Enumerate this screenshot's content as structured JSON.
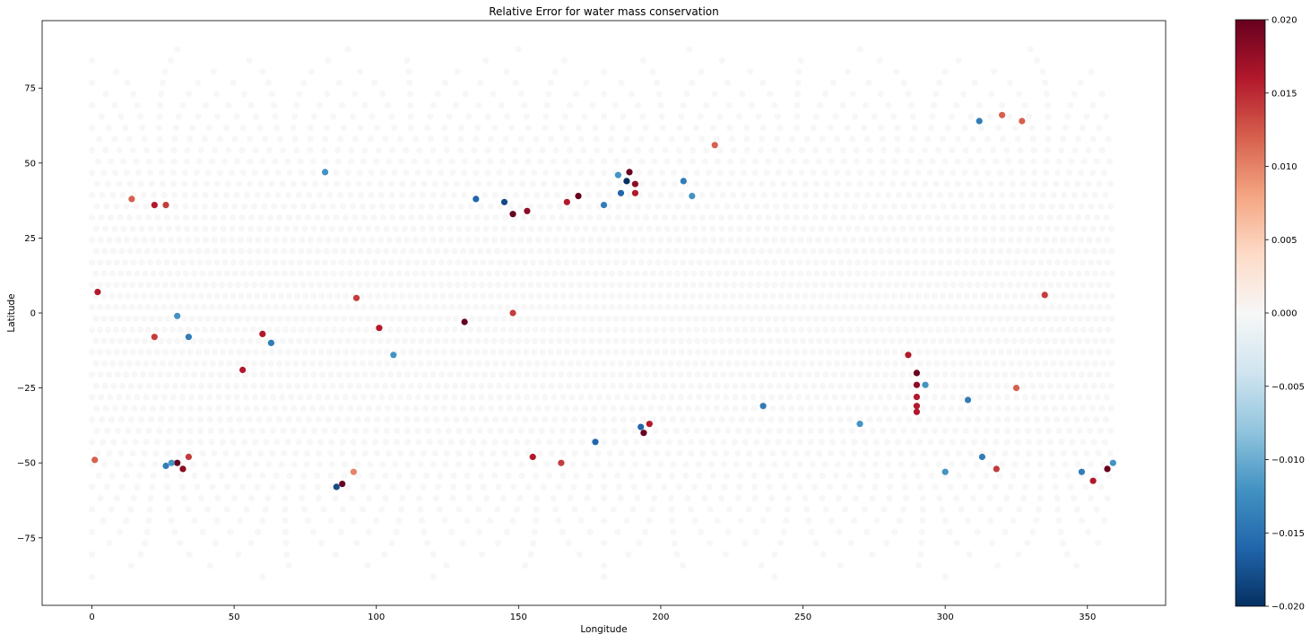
{
  "chart_data": {
    "type": "scatter",
    "title": "Relative Error for water mass conservation",
    "xlabel": "Longitude",
    "ylabel": "Latitude",
    "xlim": [
      -17.5,
      377.5
    ],
    "ylim": [
      -97.5,
      97.5
    ],
    "x_ticks": [
      0,
      50,
      100,
      150,
      200,
      250,
      300,
      350
    ],
    "y_ticks": [
      -75,
      -50,
      -25,
      0,
      25,
      50,
      75
    ],
    "x_tick_labels": [
      "0",
      "50",
      "100",
      "150",
      "200",
      "250",
      "300",
      "350"
    ],
    "y_tick_labels": [
      "−75",
      "−50",
      "−25",
      "0",
      "25",
      "50",
      "75"
    ],
    "grid": false,
    "colormap": "RdBu_r",
    "colorbar": {
      "range": [
        -0.02,
        0.02
      ],
      "ticks": [
        -0.02,
        -0.015,
        -0.01,
        -0.005,
        0.0,
        0.005,
        0.01,
        0.015,
        0.02
      ],
      "tick_labels": [
        "−0.020",
        "−0.015",
        "−0.010",
        "−0.005",
        "0.000",
        "0.005",
        "0.010",
        "0.015",
        "0.020"
      ]
    },
    "background_points_value": 0.0,
    "notable_points": [
      {
        "x": 2,
        "y": 7,
        "value": 0.016
      },
      {
        "x": 1,
        "y": -49,
        "value": 0.012
      },
      {
        "x": 22,
        "y": 36,
        "value": 0.016
      },
      {
        "x": 26,
        "y": 36,
        "value": 0.014
      },
      {
        "x": 14,
        "y": 38,
        "value": 0.012
      },
      {
        "x": 30,
        "y": -1,
        "value": -0.012
      },
      {
        "x": 22,
        "y": -8,
        "value": 0.014
      },
      {
        "x": 34,
        "y": -8,
        "value": -0.014
      },
      {
        "x": 30,
        "y": -50,
        "value": 0.02
      },
      {
        "x": 32,
        "y": -52,
        "value": 0.018
      },
      {
        "x": 28,
        "y": -50,
        "value": -0.012
      },
      {
        "x": 34,
        "y": -48,
        "value": 0.014
      },
      {
        "x": 26,
        "y": -51,
        "value": -0.014
      },
      {
        "x": 60,
        "y": -7,
        "value": 0.016
      },
      {
        "x": 63,
        "y": -10,
        "value": -0.014
      },
      {
        "x": 53,
        "y": -19,
        "value": 0.016
      },
      {
        "x": 88,
        "y": -57,
        "value": 0.02
      },
      {
        "x": 86,
        "y": -58,
        "value": -0.018
      },
      {
        "x": 92,
        "y": -53,
        "value": 0.01
      },
      {
        "x": 82,
        "y": 47,
        "value": -0.012
      },
      {
        "x": 93,
        "y": 5,
        "value": 0.014
      },
      {
        "x": 106,
        "y": -14,
        "value": -0.012
      },
      {
        "x": 101,
        "y": -5,
        "value": 0.016
      },
      {
        "x": 131,
        "y": -3,
        "value": 0.02
      },
      {
        "x": 148,
        "y": 33,
        "value": 0.02
      },
      {
        "x": 153,
        "y": 34,
        "value": 0.018
      },
      {
        "x": 171,
        "y": 39,
        "value": 0.02
      },
      {
        "x": 167,
        "y": 37,
        "value": 0.016
      },
      {
        "x": 145,
        "y": 37,
        "value": -0.018
      },
      {
        "x": 135,
        "y": 38,
        "value": -0.016
      },
      {
        "x": 189,
        "y": 47,
        "value": 0.02
      },
      {
        "x": 188,
        "y": 44,
        "value": -0.02
      },
      {
        "x": 191,
        "y": 43,
        "value": 0.018
      },
      {
        "x": 186,
        "y": 40,
        "value": -0.016
      },
      {
        "x": 191,
        "y": 40,
        "value": 0.016
      },
      {
        "x": 185,
        "y": 46,
        "value": -0.012
      },
      {
        "x": 180,
        "y": 36,
        "value": -0.014
      },
      {
        "x": 148,
        "y": 0,
        "value": 0.014
      },
      {
        "x": 155,
        "y": -48,
        "value": 0.016
      },
      {
        "x": 177,
        "y": -43,
        "value": -0.016
      },
      {
        "x": 194,
        "y": -40,
        "value": 0.02
      },
      {
        "x": 196,
        "y": -37,
        "value": 0.016
      },
      {
        "x": 193,
        "y": -38,
        "value": -0.016
      },
      {
        "x": 165,
        "y": -50,
        "value": 0.014
      },
      {
        "x": 208,
        "y": 44,
        "value": -0.014
      },
      {
        "x": 211,
        "y": 39,
        "value": -0.012
      },
      {
        "x": 219,
        "y": 56,
        "value": 0.012
      },
      {
        "x": 236,
        "y": -31,
        "value": -0.014
      },
      {
        "x": 290,
        "y": -20,
        "value": 0.02
      },
      {
        "x": 290,
        "y": -24,
        "value": 0.018
      },
      {
        "x": 290,
        "y": -28,
        "value": 0.016
      },
      {
        "x": 290,
        "y": -31,
        "value": 0.016
      },
      {
        "x": 290,
        "y": -33,
        "value": 0.016
      },
      {
        "x": 287,
        "y": -14,
        "value": 0.016
      },
      {
        "x": 293,
        "y": -24,
        "value": -0.012
      },
      {
        "x": 308,
        "y": -29,
        "value": -0.014
      },
      {
        "x": 300,
        "y": -53,
        "value": -0.012
      },
      {
        "x": 313,
        "y": -48,
        "value": -0.014
      },
      {
        "x": 318,
        "y": -52,
        "value": 0.014
      },
      {
        "x": 320,
        "y": 66,
        "value": 0.012
      },
      {
        "x": 312,
        "y": 64,
        "value": -0.014
      },
      {
        "x": 327,
        "y": 64,
        "value": 0.012
      },
      {
        "x": 348,
        "y": -53,
        "value": -0.014
      },
      {
        "x": 352,
        "y": -56,
        "value": 0.016
      },
      {
        "x": 357,
        "y": -52,
        "value": 0.02
      },
      {
        "x": 359,
        "y": -50,
        "value": -0.012
      },
      {
        "x": 335,
        "y": 6,
        "value": 0.014
      },
      {
        "x": 325,
        "y": -25,
        "value": 0.012
      },
      {
        "x": 270,
        "y": -37,
        "value": -0.012
      }
    ]
  }
}
